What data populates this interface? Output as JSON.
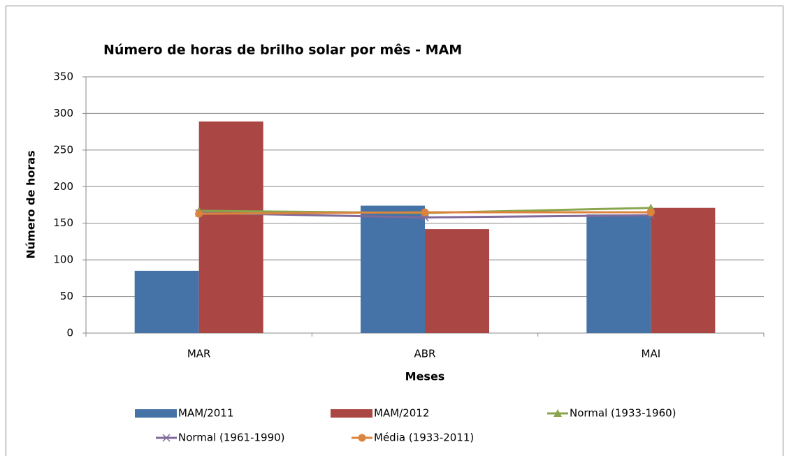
{
  "chart_data": {
    "type": "bar",
    "title": "Número de horas de brilho solar por mês - MAM",
    "x_label": "Meses",
    "y_label": "Número de horas",
    "categories": [
      "MAR",
      "ABR",
      "MAI"
    ],
    "ylim": [
      0,
      350
    ],
    "yticks": [
      0,
      50,
      100,
      150,
      200,
      250,
      300,
      350
    ],
    "grid": true,
    "series": [
      {
        "name": "MAM/2011",
        "type": "bar",
        "color": "#4572a7",
        "values": [
          85,
          174,
          162
        ]
      },
      {
        "name": "MAM/2012",
        "type": "bar",
        "color": "#aa4643",
        "values": [
          289,
          142,
          171
        ]
      },
      {
        "name": "Normal (1933-1960)",
        "type": "line",
        "marker": "triangle",
        "color": "#89a54e",
        "values": [
          167,
          164,
          171
        ]
      },
      {
        "name": "Normal (1961-1990)",
        "type": "line",
        "marker": "x",
        "color": "#80699b",
        "values": [
          164,
          158,
          161
        ]
      },
      {
        "name": "Média (1933-2011)",
        "type": "line",
        "marker": "circle",
        "color": "#db843d",
        "values": [
          163,
          165,
          165
        ]
      }
    ]
  }
}
